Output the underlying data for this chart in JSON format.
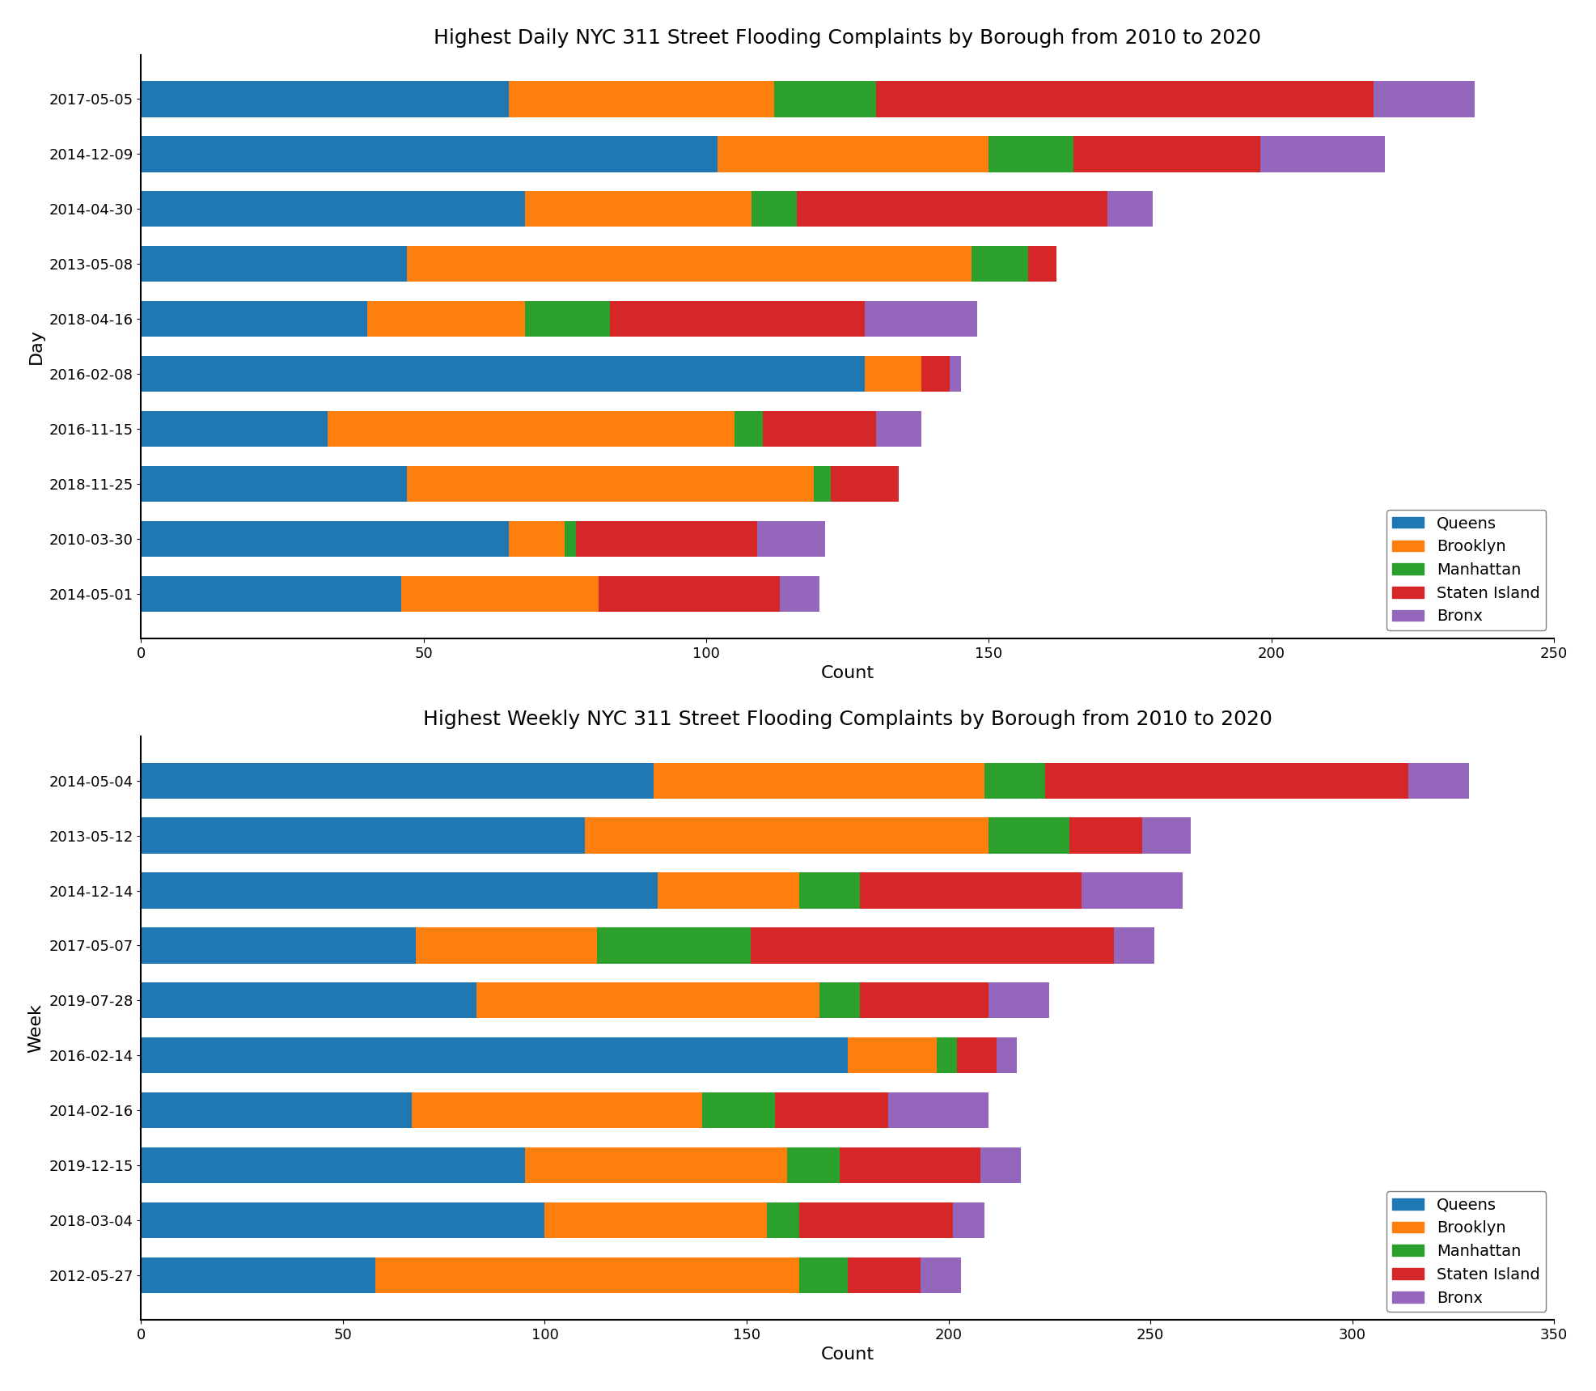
{
  "daily": {
    "title": "Highest Daily NYC 311 Street Flooding Complaints by Borough from 2010 to 2020",
    "xlabel": "Count",
    "ylabel": "Day",
    "categories": [
      "2017-05-05",
      "2014-12-09",
      "2014-04-30",
      "2013-05-08",
      "2018-04-16",
      "2016-02-08",
      "2016-11-15",
      "2018-11-25",
      "2010-03-30",
      "2014-05-01"
    ],
    "boroughs": [
      "Queens",
      "Brooklyn",
      "Manhattan",
      "Staten Island",
      "Bronx"
    ],
    "colors": [
      "#1f77b4",
      "#ff7f0e",
      "#2ca02c",
      "#d62728",
      "#9467bd"
    ],
    "data": {
      "Queens": [
        65,
        102,
        68,
        47,
        40,
        128,
        33,
        47,
        65,
        46
      ],
      "Brooklyn": [
        47,
        48,
        40,
        100,
        28,
        10,
        72,
        72,
        10,
        35
      ],
      "Manhattan": [
        18,
        15,
        8,
        10,
        15,
        0,
        5,
        3,
        2,
        0
      ],
      "Staten Island": [
        88,
        33,
        55,
        5,
        45,
        5,
        20,
        12,
        32,
        32
      ],
      "Bronx": [
        18,
        22,
        8,
        0,
        20,
        2,
        8,
        0,
        12,
        7
      ]
    },
    "xlim": [
      0,
      250
    ]
  },
  "weekly": {
    "title": "Highest Weekly NYC 311 Street Flooding Complaints by Borough from 2010 to 2020",
    "xlabel": "Count",
    "ylabel": "Week",
    "categories": [
      "2014-05-04",
      "2013-05-12",
      "2014-12-14",
      "2017-05-07",
      "2019-07-28",
      "2016-02-14",
      "2014-02-16",
      "2019-12-15",
      "2018-03-04",
      "2012-05-27"
    ],
    "boroughs": [
      "Queens",
      "Brooklyn",
      "Manhattan",
      "Staten Island",
      "Bronx"
    ],
    "colors": [
      "#1f77b4",
      "#ff7f0e",
      "#2ca02c",
      "#d62728",
      "#9467bd"
    ],
    "data": {
      "Queens": [
        127,
        110,
        128,
        68,
        83,
        175,
        67,
        95,
        100,
        58
      ],
      "Brooklyn": [
        82,
        100,
        35,
        45,
        85,
        22,
        72,
        65,
        55,
        105
      ],
      "Manhattan": [
        15,
        20,
        15,
        38,
        10,
        5,
        18,
        13,
        8,
        12
      ],
      "Staten Island": [
        90,
        18,
        55,
        90,
        32,
        10,
        28,
        35,
        38,
        18
      ],
      "Bronx": [
        15,
        12,
        25,
        10,
        15,
        5,
        25,
        10,
        8,
        10
      ]
    },
    "xlim": [
      0,
      350
    ]
  }
}
